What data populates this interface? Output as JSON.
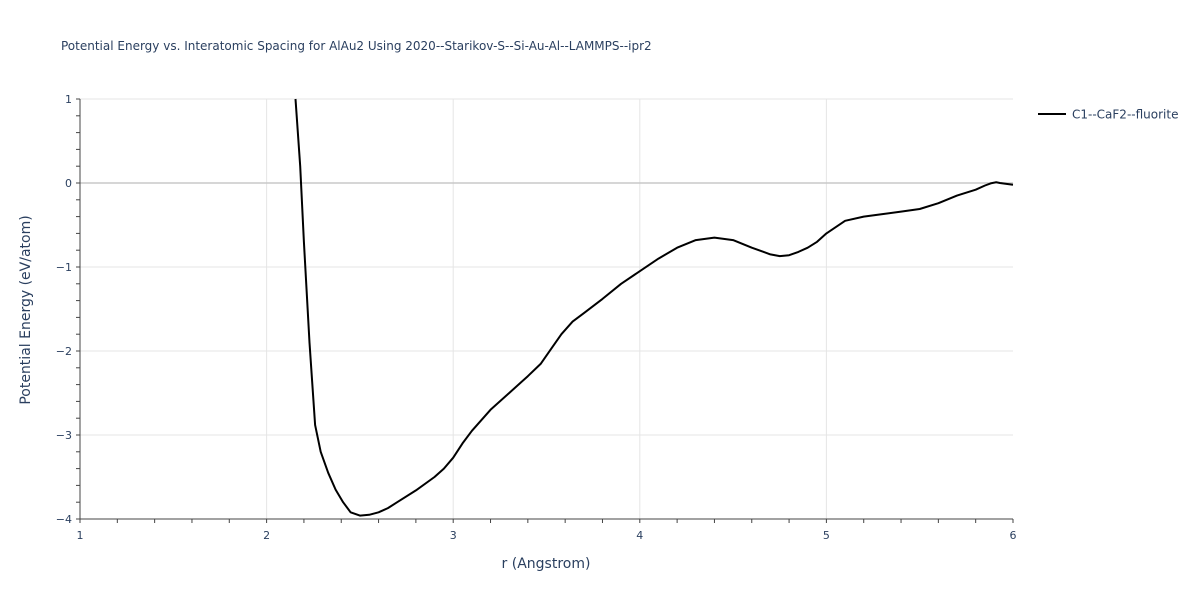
{
  "chart_data": {
    "type": "line",
    "title": "Potential Energy vs. Interatomic Spacing for AlAu2 Using 2020--Starikov-S--Si-Au-Al--LAMMPS--ipr2",
    "xlabel": "r (Angstrom)",
    "ylabel": "Potential Energy (eV/atom)",
    "xlim": [
      1,
      6
    ],
    "ylim": [
      -4,
      1
    ],
    "xticks": [
      "1",
      "2",
      "3",
      "4",
      "5",
      "6"
    ],
    "yticks": [
      "1",
      "0",
      "−1",
      "−2",
      "−3",
      "−4"
    ],
    "grid": true,
    "legend_position": "top-right",
    "series": [
      {
        "name": "C1--CaF2--fluorite",
        "color": "#000000",
        "x": [
          2.155,
          2.18,
          2.2,
          2.23,
          2.26,
          2.29,
          2.33,
          2.37,
          2.41,
          2.45,
          2.5,
          2.55,
          2.6,
          2.65,
          2.7,
          2.8,
          2.9,
          2.95,
          3.0,
          3.05,
          3.1,
          3.2,
          3.3,
          3.4,
          3.47,
          3.52,
          3.58,
          3.64,
          3.7,
          3.8,
          3.9,
          4.0,
          4.1,
          4.2,
          4.3,
          4.4,
          4.5,
          4.6,
          4.7,
          4.75,
          4.8,
          4.85,
          4.9,
          4.95,
          5.0,
          5.1,
          5.2,
          5.3,
          5.4,
          5.5,
          5.6,
          5.7,
          5.8,
          5.85,
          5.88,
          5.91,
          5.93,
          6.0
        ],
        "y": [
          1.0,
          0.2,
          -0.7,
          -1.9,
          -2.88,
          -3.2,
          -3.45,
          -3.65,
          -3.8,
          -3.92,
          -3.96,
          -3.95,
          -3.92,
          -3.87,
          -3.8,
          -3.66,
          -3.5,
          -3.4,
          -3.27,
          -3.1,
          -2.95,
          -2.7,
          -2.5,
          -2.3,
          -2.15,
          -1.99,
          -1.8,
          -1.65,
          -1.55,
          -1.38,
          -1.2,
          -1.05,
          -0.9,
          -0.77,
          -0.68,
          -0.65,
          -0.68,
          -0.77,
          -0.85,
          -0.87,
          -0.86,
          -0.82,
          -0.77,
          -0.7,
          -0.6,
          -0.45,
          -0.4,
          -0.37,
          -0.34,
          -0.31,
          -0.24,
          -0.15,
          -0.08,
          -0.03,
          -0.005,
          0.01,
          0.0,
          -0.02
        ]
      }
    ]
  }
}
